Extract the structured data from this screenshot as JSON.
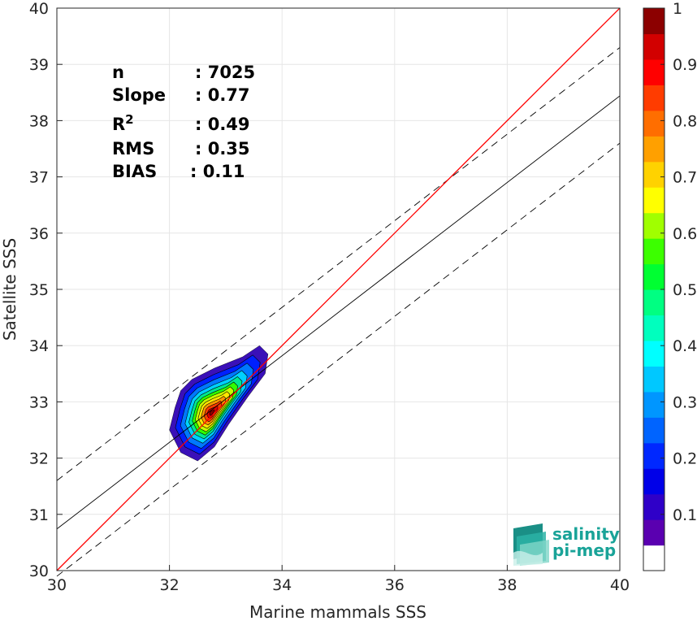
{
  "chart_data": {
    "type": "scatter",
    "subtype": "density-contour",
    "xlabel": "Marine mammals SSS",
    "ylabel": "Satellite SSS",
    "xlim": [
      30,
      40
    ],
    "ylim": [
      30,
      40
    ],
    "xticks": [
      "30",
      "32",
      "34",
      "36",
      "38",
      "40"
    ],
    "yticks": [
      "30",
      "31",
      "32",
      "33",
      "34",
      "35",
      "36",
      "37",
      "38",
      "39",
      "40"
    ],
    "grid": true,
    "stats": [
      {
        "label": "n",
        "value": ": 7025"
      },
      {
        "label": "Slope",
        "value": ": 0.77"
      },
      {
        "label": "R",
        "sup": "2",
        "value": ": 0.49"
      },
      {
        "label": "RMS",
        "value": ": 0.35"
      },
      {
        "label": "BIAS",
        "value": ": 0.11"
      }
    ],
    "lines": {
      "identity": {
        "slope": 1,
        "intercept": 0,
        "color": "#ff0000"
      },
      "fit": {
        "slope": 0.77,
        "intercept": 7.64,
        "color": "#000000"
      },
      "upper_bound": {
        "slope": 0.77,
        "intercept": 8.5,
        "color": "#000000",
        "style": "dashed"
      },
      "lower_bound": {
        "slope": 0.77,
        "intercept": 6.8,
        "color": "#000000",
        "style": "dashed"
      }
    },
    "density_peak": {
      "x": 32.75,
      "y": 32.8
    },
    "colorbar": {
      "range": [
        0,
        1
      ],
      "ticks": [
        "0.1",
        "0.2",
        "0.3",
        "0.4",
        "0.5",
        "0.6",
        "0.7",
        "0.8",
        "0.9",
        "1"
      ],
      "colors": [
        "#ffffff",
        "#5a00b0",
        "#2f00c8",
        "#0000e8",
        "#0028ff",
        "#0064ff",
        "#0096ff",
        "#00c8ff",
        "#00ffff",
        "#00ffbe",
        "#00ff82",
        "#00ff32",
        "#3cff00",
        "#a0ff00",
        "#ffff00",
        "#ffd200",
        "#ffa000",
        "#ff6e00",
        "#ff3c00",
        "#ff0000",
        "#d20000",
        "#8c0000"
      ]
    }
  },
  "logo": {
    "line1": "salinity",
    "line2": "pi-mep"
  }
}
